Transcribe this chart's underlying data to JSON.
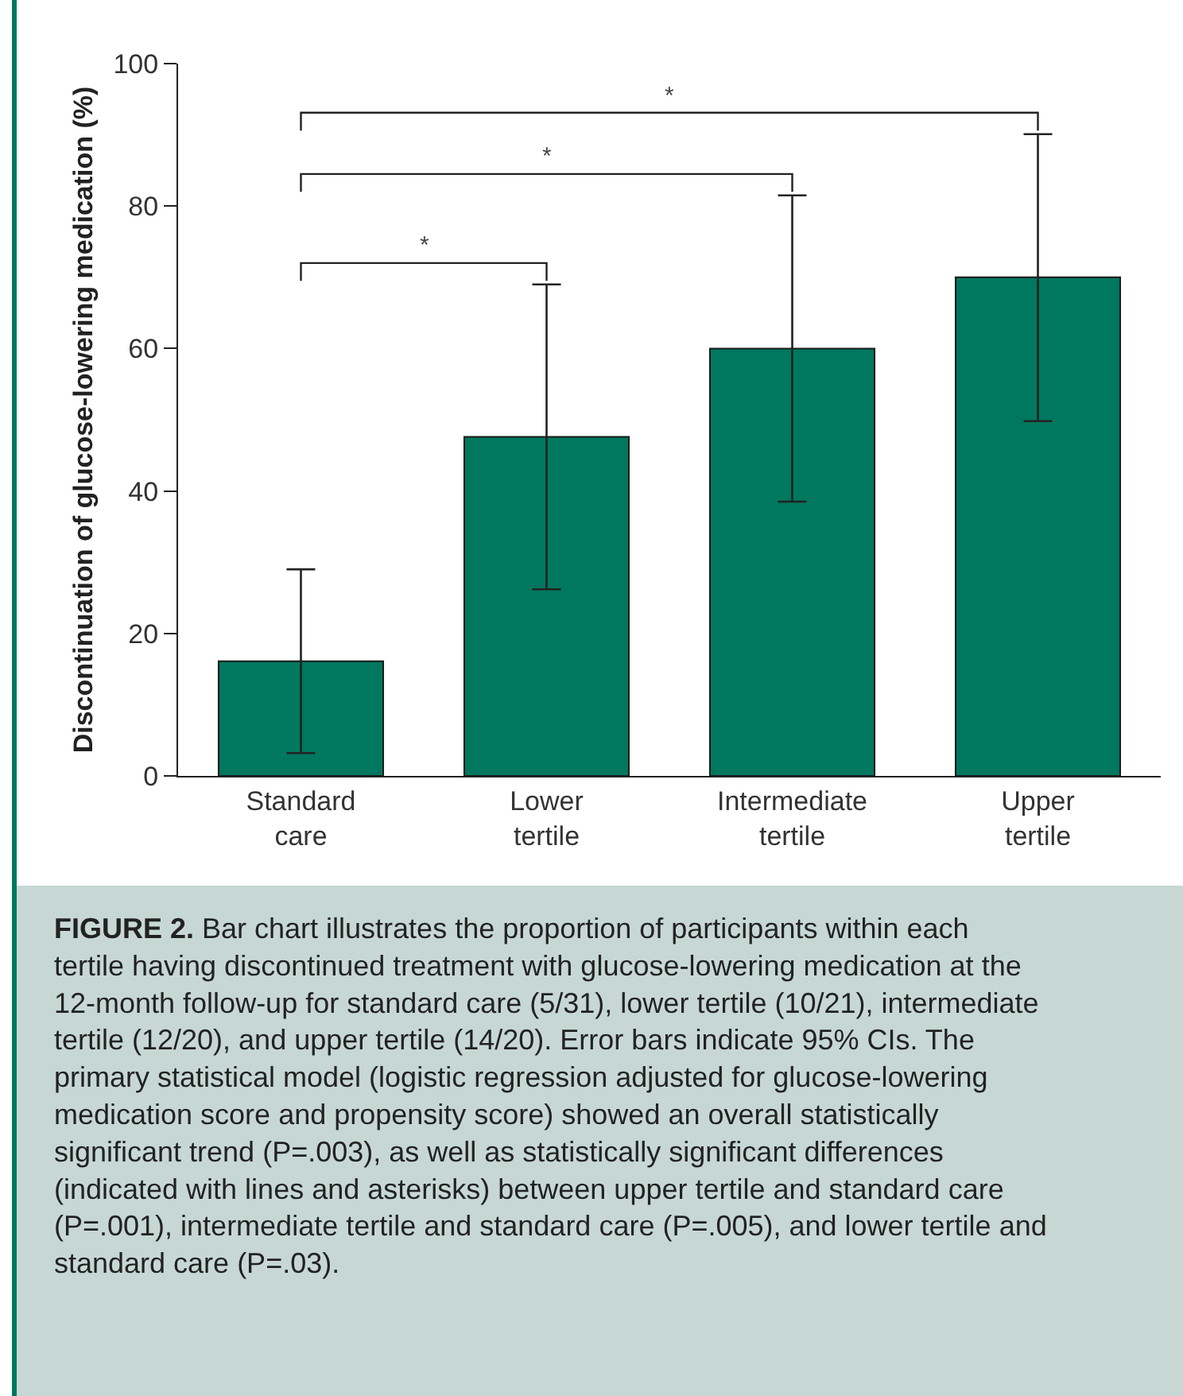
{
  "chart_data": {
    "type": "bar",
    "ylabel": "Discontinuation of glucose-lowering medication (%)",
    "categories": [
      "Standard care",
      "Lower tertile",
      "Intermediate tertile",
      "Upper tertile"
    ],
    "values": [
      16.1,
      47.6,
      60,
      70
    ],
    "errors": [
      [
        3.2,
        29
      ],
      [
        26.2,
        69
      ],
      [
        38.5,
        81.5
      ],
      [
        49.8,
        90.1
      ]
    ],
    "color": "#00775f",
    "ylim": [
      0,
      100
    ],
    "yticks": [
      0,
      20,
      40,
      60,
      80,
      100
    ],
    "annotations": [
      "*",
      "*",
      "*",
      "FIGURE 2. Bar chart illustrates the proportion of participants within each tertile having discontinued treatment with glucose-lowering medication at the 12-month follow-up for standard care (5/31), lower tertile (10/21), intermediate tertile (12/20), and upper tertile (14/20). Error bars indicate 95% CIs. The primary statistical model (logistic regression adjusted for glucose-lowering medication score and propensity score) showed an overall statistically significant trend (P=.003), as well as statistically significant differences (indicated with lines and asterisks) between upper tertile and standard care (P=.001), intermediate tertile and standard care (P=.005), and lower tertile and standard care (P=.03)."
    ]
  }
}
